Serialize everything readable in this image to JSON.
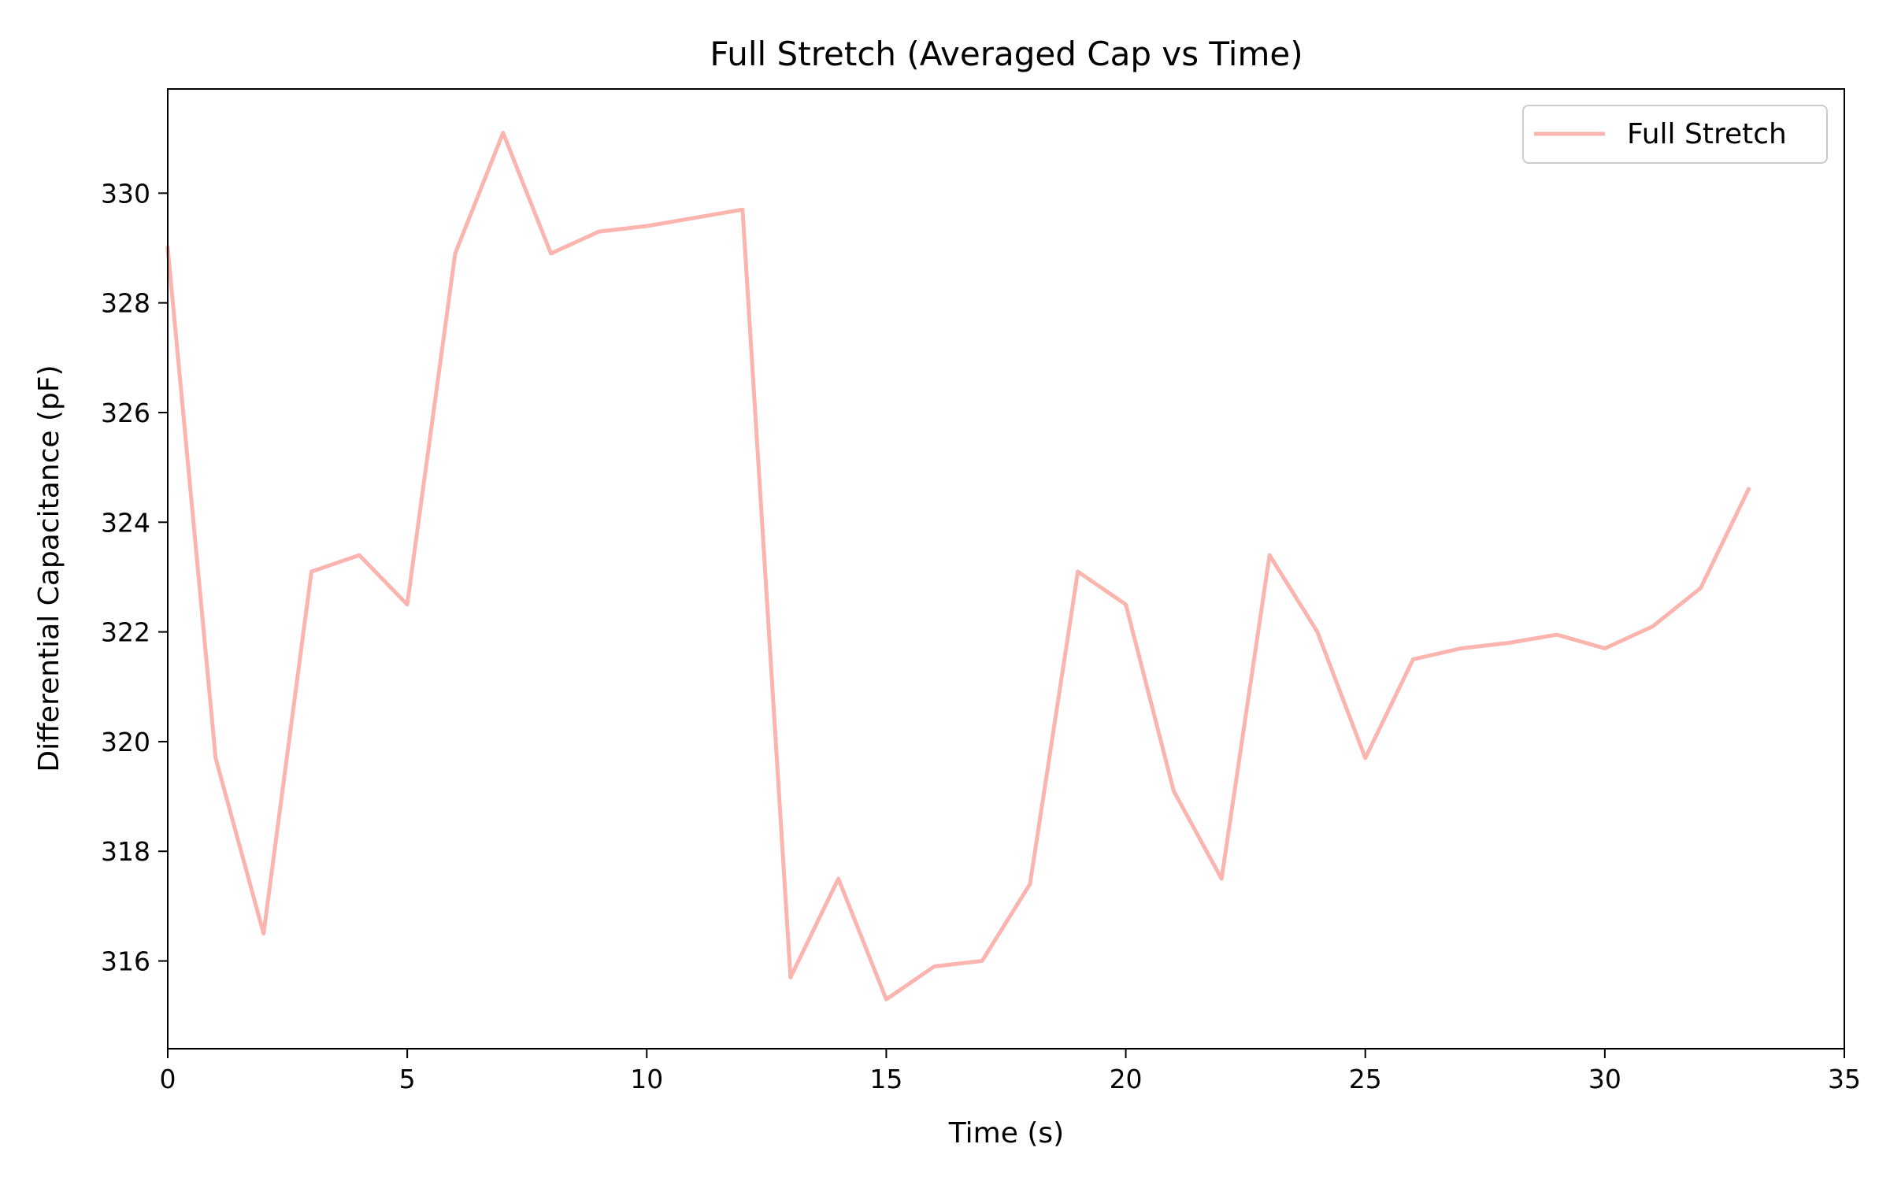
{
  "chart_data": {
    "type": "line",
    "title": "Full Stretch (Averaged Cap vs Time)",
    "xlabel": "Time (s)",
    "ylabel": "Differential Capacitance (pF)",
    "xlim": [
      0,
      35
    ],
    "ylim": [
      314.4,
      331.9
    ],
    "xticks": [
      0,
      5,
      10,
      15,
      20,
      25,
      30,
      35
    ],
    "yticks": [
      316,
      318,
      320,
      322,
      324,
      326,
      328,
      330
    ],
    "grid": false,
    "legend_position": "top-right",
    "series": [
      {
        "name": "Full Stretch",
        "color": "#fbb4ae",
        "x": [
          0,
          1,
          2,
          3,
          4,
          5,
          6,
          7,
          8,
          9,
          10,
          11,
          12,
          13,
          14,
          15,
          16,
          17,
          18,
          19,
          20,
          21,
          22,
          23,
          24,
          25,
          26,
          27,
          28,
          29,
          30,
          31,
          32,
          33
        ],
        "y": [
          329.0,
          319.7,
          316.5,
          323.1,
          323.4,
          322.5,
          328.9,
          331.1,
          328.9,
          329.3,
          329.4,
          329.55,
          329.7,
          315.7,
          317.5,
          315.3,
          315.9,
          316.0,
          317.4,
          323.1,
          322.5,
          319.1,
          317.5,
          323.4,
          322.0,
          319.7,
          321.5,
          321.7,
          321.8,
          321.95,
          321.7,
          322.1,
          322.8,
          324.6
        ]
      }
    ]
  }
}
